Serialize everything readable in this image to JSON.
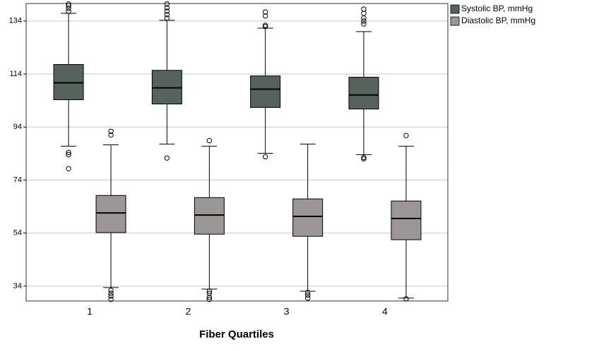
{
  "chart_data": {
    "type": "boxplot",
    "xlabel": "Fiber Quartiles",
    "categories": [
      "1",
      "2",
      "3",
      "4"
    ],
    "ylim": [
      28.4,
      140.6
    ],
    "yticks": [
      34,
      54,
      74,
      94,
      114,
      134
    ],
    "grid": true,
    "legend": "upper right",
    "series": [
      {
        "name": "Systolic BP, mmHg",
        "color": "#56635c",
        "boxes": [
          {
            "whislo": 86.8,
            "q1": 104.3,
            "med": 110.7,
            "q3": 117.6,
            "whishi": 136.9,
            "fliers": [
              140.4,
              139.8,
              138.8,
              137.7,
              84.4,
              83.6,
              78.3
            ]
          },
          {
            "whislo": 87.6,
            "q1": 102.7,
            "med": 108.8,
            "q3": 115.4,
            "whishi": 134.3,
            "fliers": [
              140.4,
              139,
              137.7,
              136.4,
              135.1,
              82.3
            ]
          },
          {
            "whislo": 84.1,
            "q1": 101.4,
            "med": 108.3,
            "q3": 113.3,
            "whishi": 131.3,
            "fliers": [
              137.4,
              135.9,
              132.4,
              131.9,
              82.8
            ]
          },
          {
            "whislo": 83.6,
            "q1": 100.8,
            "med": 106.1,
            "q3": 112.8,
            "whishi": 130,
            "fliers": [
              138.5,
              136.9,
              135.1,
              134,
              132.9,
              82.5,
              82
            ]
          }
        ]
      },
      {
        "name": "Diastolic BP, mmHg",
        "color": "#9b9797",
        "boxes": [
          {
            "whislo": 33.5,
            "q1": 54.2,
            "med": 61.6,
            "q3": 68.2,
            "whishi": 87.3,
            "fliers": [
              92.4,
              91,
              32.4,
              31.3,
              30.3,
              29
            ]
          },
          {
            "whislo": 32.9,
            "q1": 53.6,
            "med": 60.8,
            "q3": 67.4,
            "whishi": 86.8,
            "fliers": [
              88.9,
              32.1,
              31.3,
              29.8,
              29
            ]
          },
          {
            "whislo": 32.1,
            "q1": 52.8,
            "med": 60.3,
            "q3": 66.9,
            "whishi": 87.6,
            "fliers": [
              31.6,
              30.6,
              29.5
            ]
          },
          {
            "whislo": 29.5,
            "q1": 51.5,
            "med": 59.5,
            "q3": 66.1,
            "whishi": 86.8,
            "fliers": [
              90.8,
              29.2
            ]
          }
        ]
      }
    ]
  }
}
